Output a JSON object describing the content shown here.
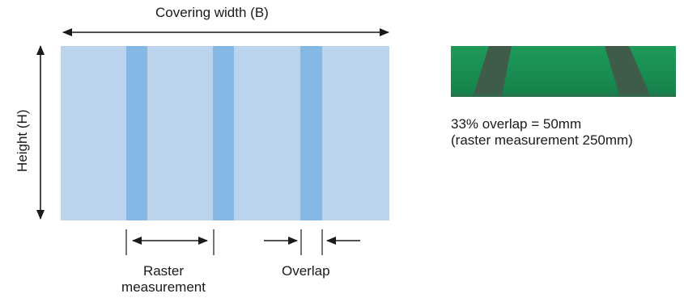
{
  "diagram": {
    "covering_width_label": "Covering width (B)",
    "height_label": "Height (H)",
    "raster_label_line1": "Raster",
    "raster_label_line2": "measurement",
    "overlap_label": "Overlap",
    "strip_count": 3
  },
  "photo": {
    "caption_line1": "33% overlap = 50mm",
    "caption_line2": "(raster measurement 250mm)"
  },
  "colors": {
    "panel": "#bcd3ee",
    "strip": "#84b9e5",
    "arrow": "#1a1a1a",
    "photo_green": "#1c8a52",
    "photo_strip": "#3f5c4a"
  }
}
